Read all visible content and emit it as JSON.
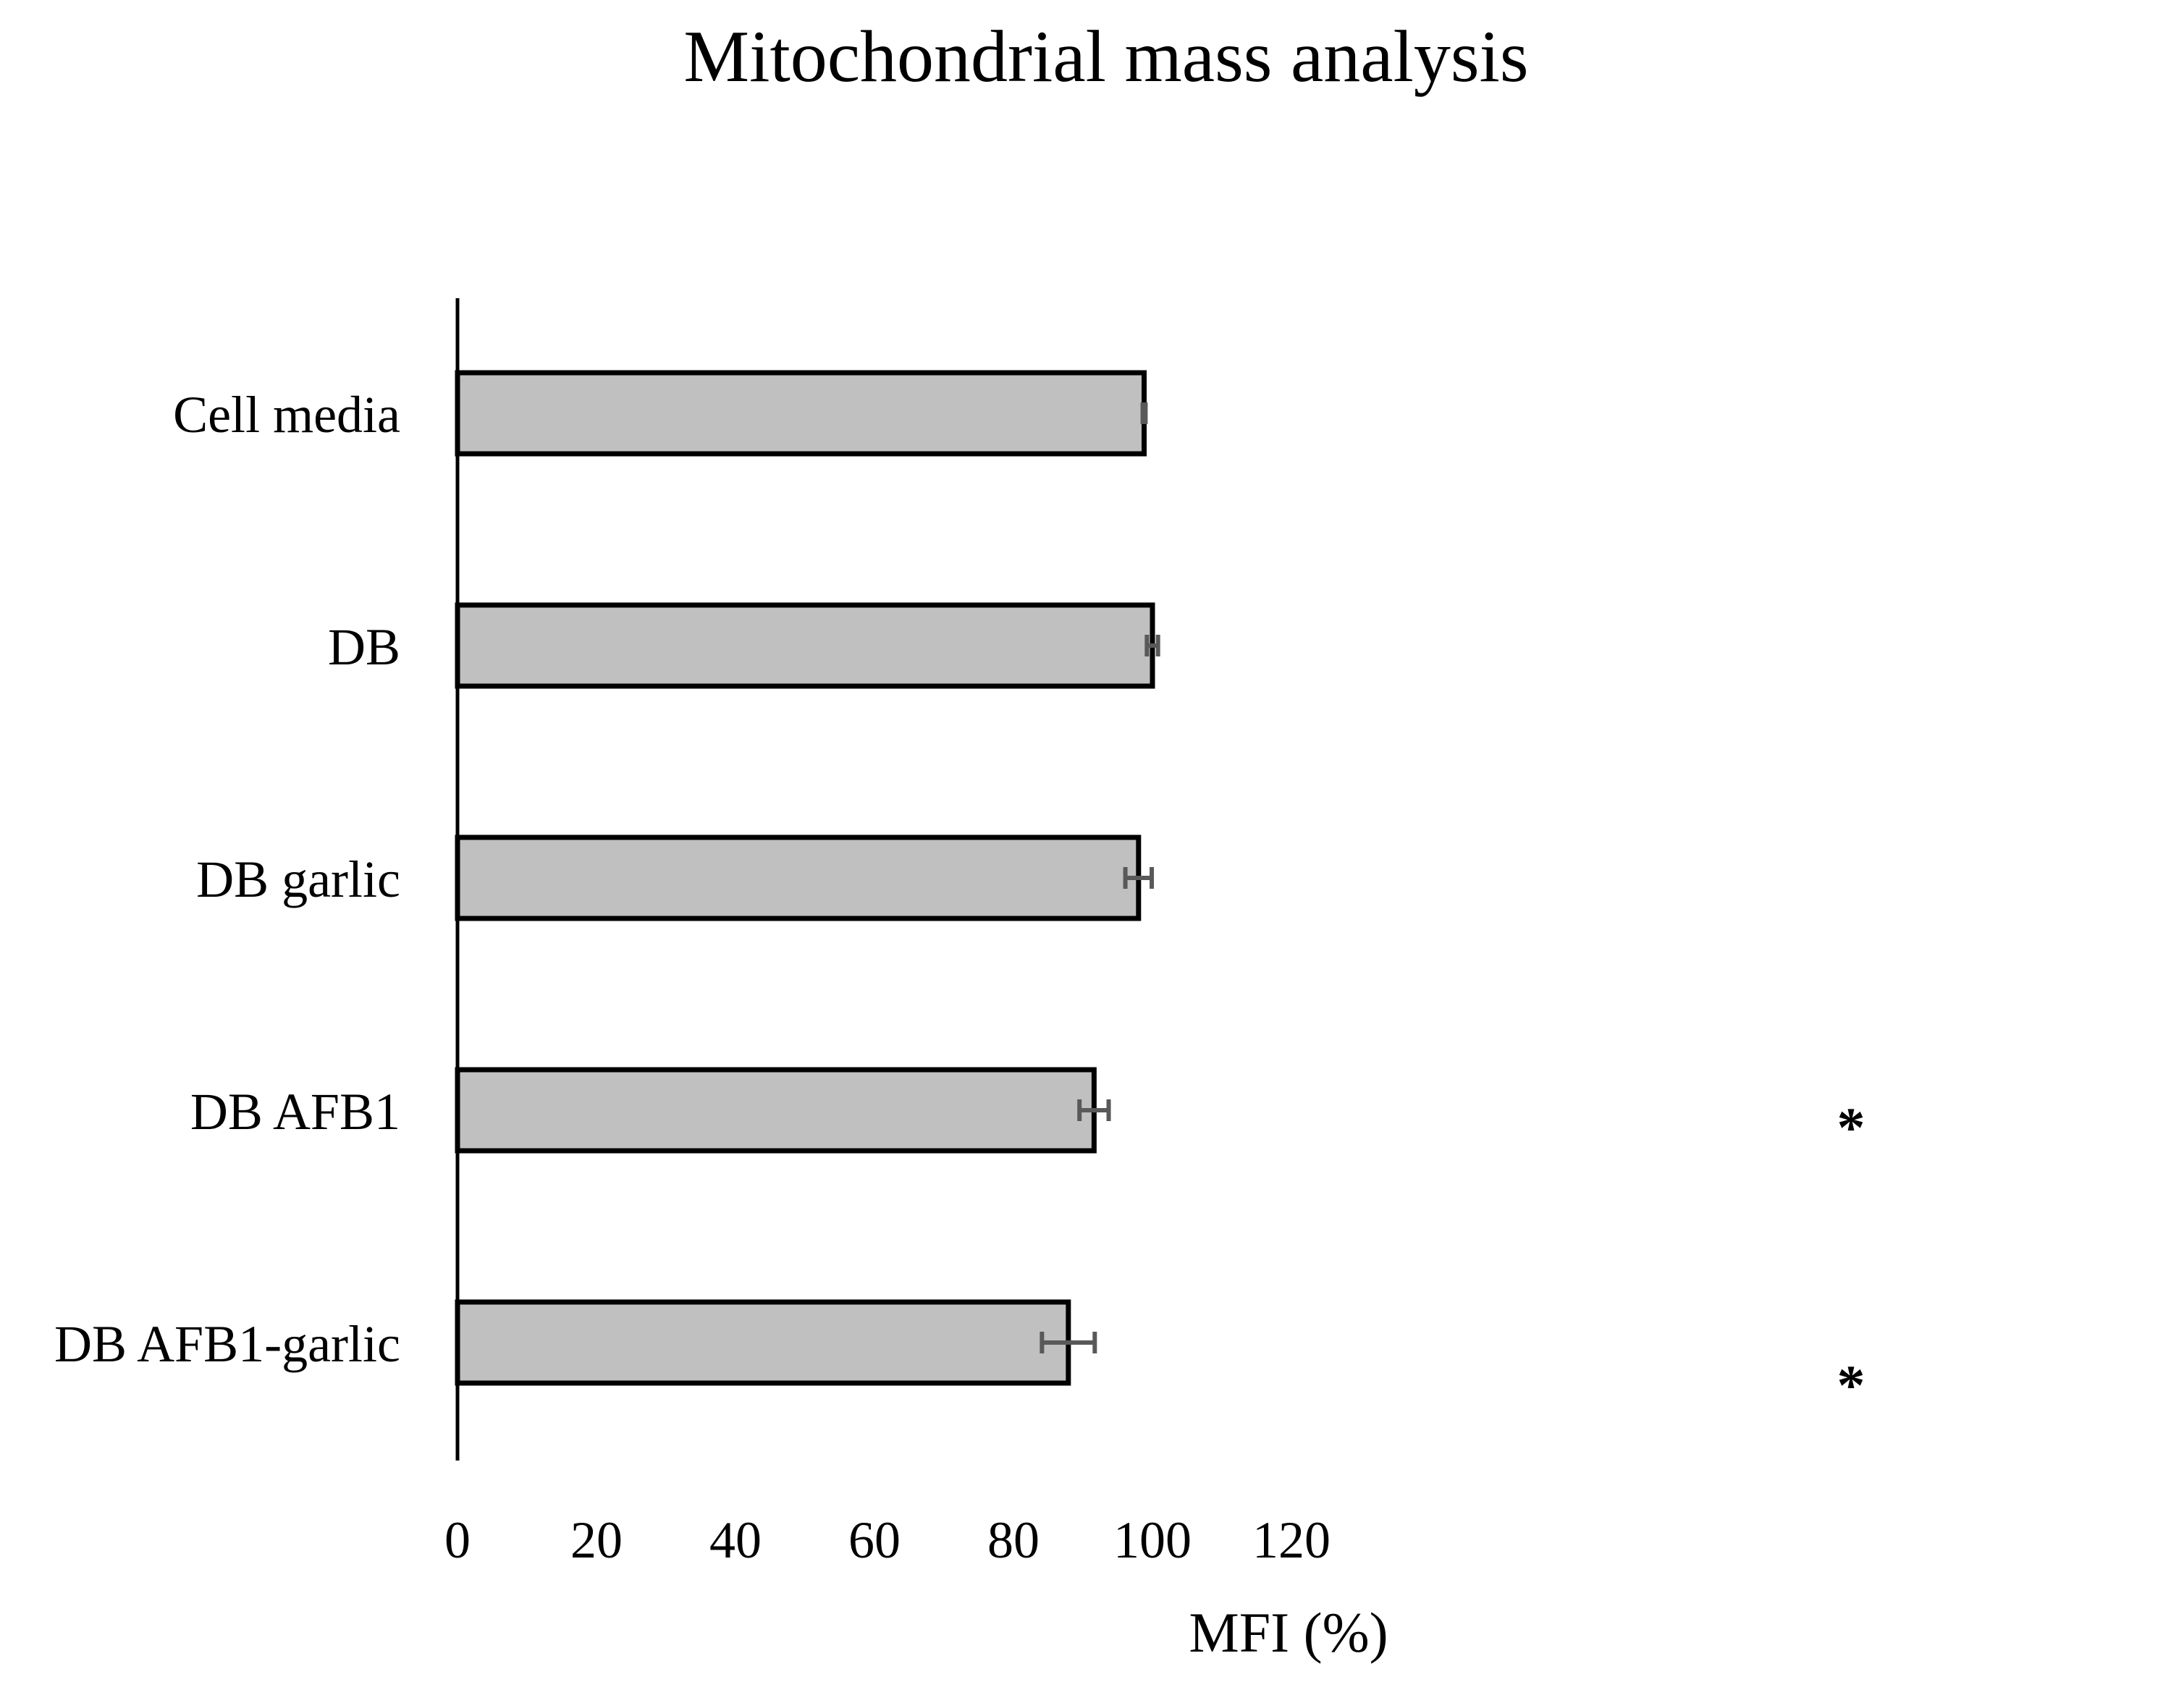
{
  "chart_data": {
    "type": "bar",
    "orientation": "horizontal",
    "title": "Mitochondrial mass analysis",
    "xlabel": "MFI (%)",
    "ylabel": "",
    "xlim": [
      0,
      120
    ],
    "x_ticks": [
      0,
      20,
      40,
      60,
      80,
      100,
      120
    ],
    "grid": false,
    "legend": "none",
    "categories": [
      "Cell media",
      "DB",
      "DB garlic",
      "DB AFB1",
      "DB AFB1-garlic"
    ],
    "values": [
      98.8,
      100.0,
      98.0,
      91.6,
      87.9
    ],
    "error": [
      0.2,
      0.8,
      1.9,
      2.1,
      3.8
    ],
    "significance": [
      "",
      "",
      "",
      "*",
      "*"
    ],
    "colors": {
      "bar_fill": "#c0c0c0",
      "bar_stroke": "#000000",
      "error_bar": "#595959",
      "axis": "#000000"
    }
  }
}
